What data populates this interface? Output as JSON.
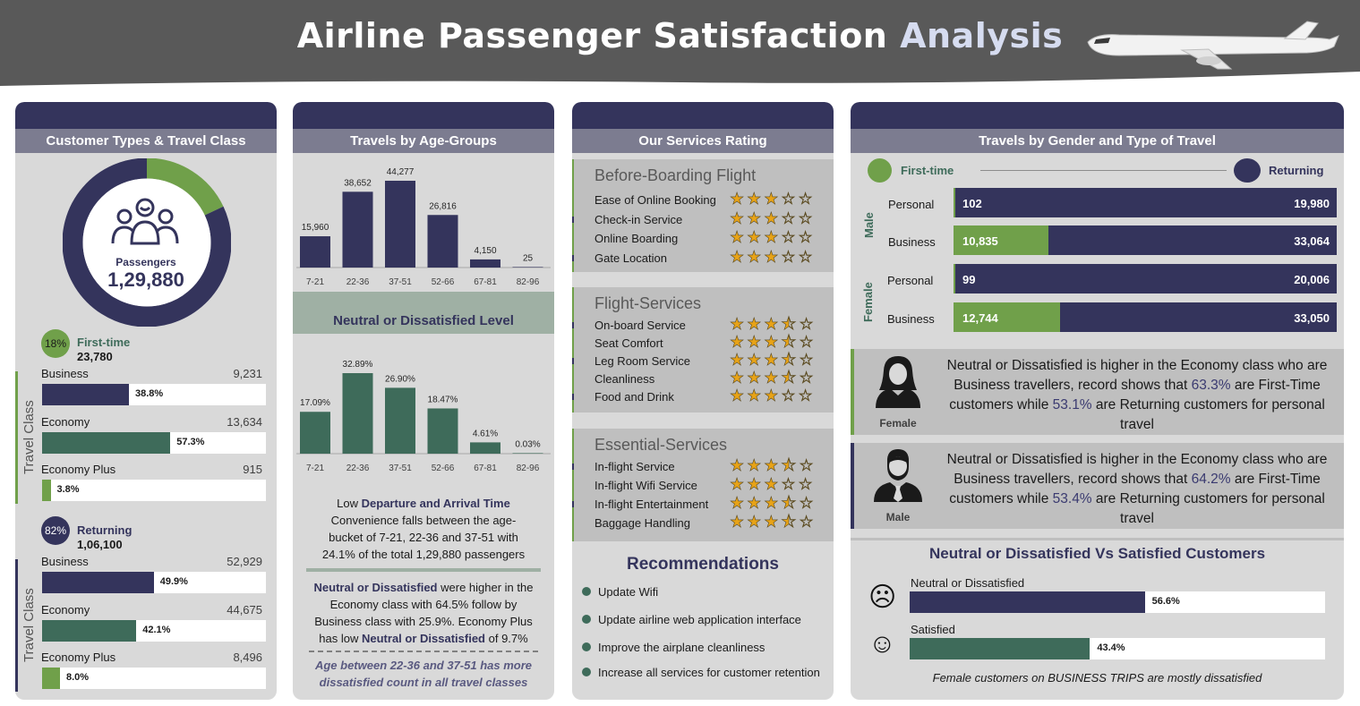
{
  "header": {
    "title_main": "Airline Passenger Satisfaction ",
    "title_accent": "Analysis",
    "plane_icon": "airplane-icon"
  },
  "customer_panel": {
    "heading": "Customer Types & Travel Class",
    "center_label": "Passengers",
    "center_value": "1,29,880",
    "first_time": {
      "pct": "18%",
      "label": "First-time",
      "count": "23,780"
    },
    "returning": {
      "pct": "82%",
      "label": "Returning",
      "count": "1,06,100"
    },
    "travel_class_label": "Travel Class",
    "first_rows": [
      {
        "label": "Business",
        "value": "9,231",
        "pct_label": "38.8%",
        "pct": 38.8,
        "color": "#34345c"
      },
      {
        "label": "Economy",
        "value": "13,634",
        "pct_label": "57.3%",
        "pct": 57.3,
        "color": "#3e6b5a"
      },
      {
        "label": "Economy Plus",
        "value": "915",
        "pct_label": "3.8%",
        "pct": 3.8,
        "color": "#70a04a"
      }
    ],
    "returning_rows": [
      {
        "label": "Business",
        "value": "52,929",
        "pct_label": "49.9%",
        "pct": 49.9,
        "color": "#34345c"
      },
      {
        "label": "Economy",
        "value": "44,675",
        "pct_label": "42.1%",
        "pct": 42.1,
        "color": "#3e6b5a"
      },
      {
        "label": "Economy Plus",
        "value": "8,496",
        "pct_label": "8.0%",
        "pct": 8.0,
        "color": "#70a04a"
      }
    ]
  },
  "age_panel": {
    "heading": "Travels by Age-Groups",
    "sub_heading": "Neutral or Dissatisfied Level",
    "text1_a": "Low ",
    "text1_b": "Departure and Arrival Time",
    "text1_c": " Convenience falls between the age-bucket of 7-21, 22-36 and 37-51 with 24.1% of the total 1,29,880 passengers",
    "text2_a": "Neutral or Dissatisfied",
    "text2_b": " were higher in the Economy class with 64.5% follow by Business class with 25.9%. Economy Plus has low ",
    "text2_c": "Neutral or Dissatisfied",
    "text2_d": " of 9.7%",
    "text3": "Age between 22-36 and 37-51 has more dissatisfied count in all travel classes"
  },
  "services_panel": {
    "heading": "Our Services Rating",
    "groups": [
      {
        "title": "Before-Boarding Flight",
        "items": [
          {
            "label": "Ease of Online Booking",
            "stars": "★★★☆☆",
            "mark": "#70a04a"
          },
          {
            "label": "Check-in Service",
            "stars": "★★★☆☆",
            "mark": "#34345c"
          },
          {
            "label": "Online Boarding",
            "stars": "★★★☆☆",
            "mark": "#70a04a"
          },
          {
            "label": "Gate Location",
            "stars": "★★★☆☆",
            "mark": "#34345c"
          }
        ]
      },
      {
        "title": "Flight-Services",
        "items": [
          {
            "label": "On-board Service",
            "stars": "★★★⯪☆",
            "mark": "#34345c"
          },
          {
            "label": "Seat Comfort",
            "stars": "★★★⯪☆",
            "mark": "#70a04a"
          },
          {
            "label": "Leg Room Service",
            "stars": "★★★⯪☆",
            "mark": "#34345c"
          },
          {
            "label": "Cleanliness",
            "stars": "★★★⯪☆",
            "mark": "#70a04a"
          },
          {
            "label": "Food and Drink",
            "stars": "★★★☆☆",
            "mark": "#34345c"
          }
        ]
      },
      {
        "title": "Essential-Services",
        "items": [
          {
            "label": "In-flight Service",
            "stars": "★★★⯪☆",
            "mark": "#34345c"
          },
          {
            "label": "In-flight Wifi Service",
            "stars": "★★★☆☆",
            "mark": "#70a04a"
          },
          {
            "label": "In-flight Entertainment",
            "stars": "★★★⯪☆",
            "mark": "#34345c"
          },
          {
            "label": "Baggage Handling",
            "stars": "★★★⯪☆",
            "mark": "#70a04a"
          }
        ]
      }
    ],
    "rec_title": "Recommendations",
    "recs": [
      "Update Wifi",
      "Update airline web application interface",
      "Improve the airplane cleanliness",
      "Increase all services for customer retention"
    ]
  },
  "gender_panel": {
    "heading": "Travels by Gender and Type of Travel",
    "legend_first": "First-time",
    "legend_returning": "Returning",
    "male_label": "Male",
    "female_label": "Female",
    "rows": [
      {
        "label": "Personal",
        "first": "102",
        "returning": "19,980",
        "first_n": 102,
        "total_n": 20082
      },
      {
        "label": "Business",
        "first": "10,835",
        "returning": "33,064",
        "first_n": 10835,
        "total_n": 43899
      },
      {
        "label": "Personal",
        "first": "99",
        "returning": "20,006",
        "first_n": 99,
        "total_n": 20105
      },
      {
        "label": "Business",
        "first": "12,744",
        "returning": "33,050",
        "first_n": 12744,
        "total_n": 45794
      }
    ],
    "note_female": {
      "label": "Female",
      "t1": "Neutral or Dissatisfied is higher in the Economy class who are Business travellers, record shows that ",
      "p1": "63.3%",
      "t2": " are First-Time customers while ",
      "p2": "53.1%",
      "t3": " are Returning customers for personal travel"
    },
    "note_male": {
      "label": "Male",
      "t1": "Neutral or Dissatisfied is higher in the Economy class who are Business travellers, record shows that ",
      "p1": "64.2%",
      "t2": " are First-Time customers while ",
      "p2": "53.4%",
      "t3": " are Returning customers for personal travel"
    },
    "ns_title": "Neutral or Dissatisfied Vs Satisfied Customers",
    "ns_rows": [
      {
        "label": "Neutral or Dissatisfied",
        "pct_label": "56.6%",
        "pct": 56.6,
        "color": "#34345c",
        "face": "☹"
      },
      {
        "label": "Satisfied",
        "pct_label": "43.4%",
        "pct": 43.4,
        "color": "#3e6b5a",
        "face": "☺"
      }
    ],
    "footer": "Female customers on BUSINESS TRIPS are mostly dissatisfied"
  },
  "chart_data": [
    {
      "type": "pie",
      "title": "Customer Types",
      "categories": [
        "First-time",
        "Returning"
      ],
      "values": [
        18,
        82
      ]
    },
    {
      "type": "bar",
      "title": "Travels by Age-Groups",
      "categories": [
        "7-21",
        "22-36",
        "37-51",
        "52-66",
        "67-81",
        "82-96"
      ],
      "values": [
        15960,
        38652,
        44277,
        26816,
        4150,
        25
      ],
      "value_labels": [
        "15,960",
        "38,652",
        "44,277",
        "26,816",
        "4,150",
        "25"
      ],
      "color": "#34345c"
    },
    {
      "type": "bar",
      "title": "Neutral or Dissatisfied Level",
      "categories": [
        "7-21",
        "22-36",
        "37-51",
        "52-66",
        "67-81",
        "82-96"
      ],
      "values": [
        17.09,
        32.89,
        26.9,
        18.47,
        4.61,
        0.03
      ],
      "value_labels": [
        "17.09%",
        "32.89%",
        "26.90%",
        "18.47%",
        "4.61%",
        "0.03%"
      ],
      "color": "#3e6b5a"
    }
  ]
}
